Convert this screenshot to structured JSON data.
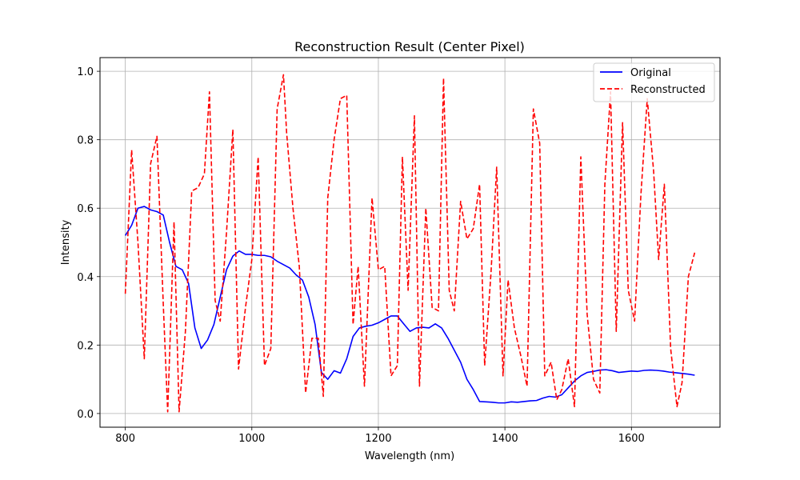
{
  "chart_data": {
    "type": "line",
    "title": "Reconstruction Result (Center Pixel)",
    "xlabel": "Wavelength (nm)",
    "ylabel": "Intensity",
    "xlim": [
      760,
      1740
    ],
    "ylim": [
      -0.04,
      1.04
    ],
    "xticks": [
      800,
      1000,
      1200,
      1400,
      1600
    ],
    "xtick_labels": [
      "800",
      "1000",
      "1200",
      "1400",
      "1600"
    ],
    "yticks": [
      0.0,
      0.2,
      0.4,
      0.6,
      0.8,
      1.0
    ],
    "ytick_labels": [
      "0.0",
      "0.2",
      "0.4",
      "0.6",
      "0.8",
      "1.0"
    ],
    "grid": true,
    "legend_position": "top-right",
    "series": [
      {
        "name": "Original",
        "color": "#0000ff",
        "style": "solid",
        "x": [
          800,
          810,
          820,
          830,
          840,
          850,
          860,
          870,
          880,
          890,
          900,
          910,
          920,
          930,
          940,
          950,
          960,
          970,
          980,
          990,
          1000,
          1010,
          1020,
          1030,
          1040,
          1050,
          1060,
          1070,
          1080,
          1090,
          1100,
          1110,
          1120,
          1130,
          1140,
          1150,
          1160,
          1170,
          1180,
          1190,
          1200,
          1210,
          1220,
          1230,
          1240,
          1250,
          1260,
          1270,
          1280,
          1290,
          1300,
          1310,
          1320,
          1330,
          1340,
          1350,
          1360,
          1370,
          1380,
          1390,
          1400,
          1410,
          1420,
          1430,
          1440,
          1450,
          1460,
          1470,
          1480,
          1490,
          1500,
          1510,
          1520,
          1530,
          1540,
          1550,
          1560,
          1570,
          1580,
          1590,
          1600,
          1610,
          1620,
          1630,
          1640,
          1650,
          1660,
          1670,
          1680,
          1690,
          1700
        ],
        "values": [
          0.52,
          0.55,
          0.6,
          0.605,
          0.595,
          0.59,
          0.58,
          0.5,
          0.43,
          0.42,
          0.38,
          0.25,
          0.19,
          0.215,
          0.26,
          0.34,
          0.42,
          0.46,
          0.475,
          0.465,
          0.465,
          0.462,
          0.462,
          0.458,
          0.445,
          0.435,
          0.425,
          0.405,
          0.39,
          0.34,
          0.26,
          0.12,
          0.1,
          0.125,
          0.118,
          0.16,
          0.225,
          0.25,
          0.255,
          0.258,
          0.265,
          0.275,
          0.285,
          0.285,
          0.262,
          0.24,
          0.25,
          0.252,
          0.25,
          0.262,
          0.25,
          0.22,
          0.185,
          0.15,
          0.1,
          0.07,
          0.035,
          0.034,
          0.033,
          0.031,
          0.031,
          0.034,
          0.033,
          0.035,
          0.037,
          0.038,
          0.045,
          0.05,
          0.048,
          0.055,
          0.075,
          0.095,
          0.11,
          0.12,
          0.123,
          0.127,
          0.128,
          0.125,
          0.12,
          0.122,
          0.124,
          0.123,
          0.126,
          0.127,
          0.126,
          0.124,
          0.121,
          0.119,
          0.117,
          0.115,
          0.112
        ]
      },
      {
        "name": "Reconstructed",
        "color": "#ff0000",
        "style": "dashed",
        "x": [
          800,
          810,
          820,
          830,
          840,
          850,
          860,
          867,
          877,
          885,
          895,
          905,
          915,
          925,
          933,
          942,
          950,
          960,
          970,
          979,
          990,
          1000,
          1010,
          1020,
          1030,
          1040,
          1050,
          1055,
          1065,
          1075,
          1085,
          1095,
          1105,
          1113,
          1120,
          1130,
          1140,
          1150,
          1160,
          1168,
          1178,
          1190,
          1200,
          1210,
          1220,
          1230,
          1238,
          1247,
          1257,
          1265,
          1275,
          1285,
          1295,
          1303,
          1312,
          1320,
          1330,
          1340,
          1350,
          1360,
          1368,
          1378,
          1387,
          1397,
          1405,
          1415,
          1425,
          1435,
          1445,
          1455,
          1463,
          1473,
          1482,
          1490,
          1500,
          1510,
          1520,
          1530,
          1540,
          1550,
          1558,
          1567,
          1576,
          1586,
          1595,
          1605,
          1615,
          1625,
          1635,
          1643,
          1652,
          1662,
          1672,
          1680,
          1690,
          1700
        ],
        "values": [
          0.35,
          0.77,
          0.5,
          0.16,
          0.73,
          0.81,
          0.32,
          0.005,
          0.56,
          0.005,
          0.24,
          0.65,
          0.66,
          0.7,
          0.94,
          0.33,
          0.27,
          0.53,
          0.83,
          0.13,
          0.31,
          0.45,
          0.75,
          0.14,
          0.19,
          0.89,
          0.99,
          0.82,
          0.6,
          0.43,
          0.06,
          0.22,
          0.22,
          0.05,
          0.63,
          0.8,
          0.92,
          0.93,
          0.26,
          0.43,
          0.08,
          0.63,
          0.42,
          0.43,
          0.11,
          0.14,
          0.75,
          0.36,
          0.87,
          0.08,
          0.6,
          0.31,
          0.3,
          0.98,
          0.36,
          0.3,
          0.62,
          0.51,
          0.54,
          0.67,
          0.14,
          0.41,
          0.72,
          0.11,
          0.39,
          0.25,
          0.17,
          0.08,
          0.89,
          0.79,
          0.11,
          0.15,
          0.04,
          0.07,
          0.16,
          0.02,
          0.75,
          0.29,
          0.1,
          0.06,
          0.67,
          0.94,
          0.24,
          0.85,
          0.36,
          0.27,
          0.64,
          0.92,
          0.71,
          0.45,
          0.67,
          0.19,
          0.02,
          0.09,
          0.4,
          0.47
        ]
      }
    ]
  }
}
